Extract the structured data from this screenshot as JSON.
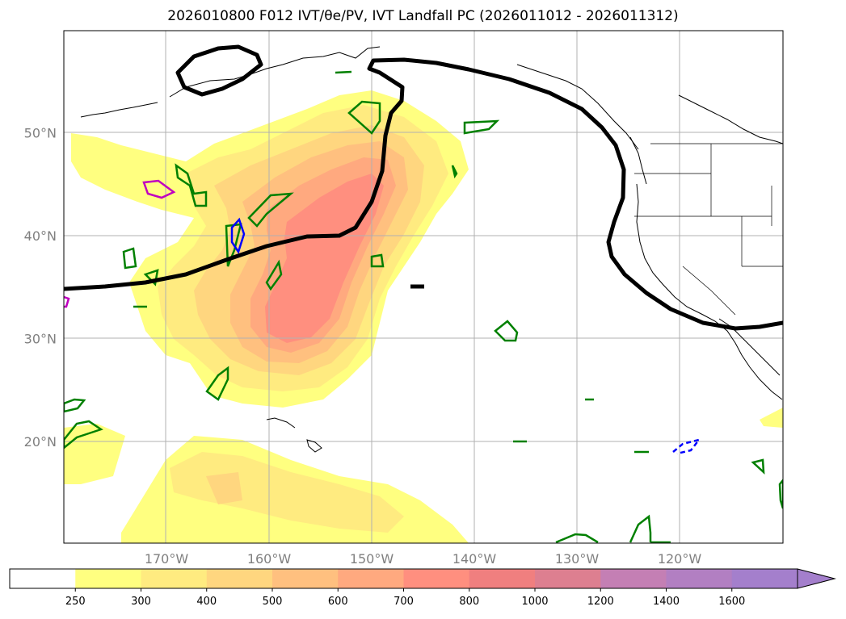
{
  "title": "2026010800 F012 IVT/θe/PV, IVT Landfall PC (2026011012 - 2026011312)",
  "map": {
    "lat_labels": [
      {
        "lat": 50,
        "text": "50°N"
      },
      {
        "lat": 40,
        "text": "40°N"
      },
      {
        "lat": 30,
        "text": "30°N"
      },
      {
        "lat": 20,
        "text": "20°N"
      }
    ],
    "lon_labels": [
      {
        "lon": -170,
        "text": "170°W"
      },
      {
        "lon": -160,
        "text": "160°W"
      },
      {
        "lon": -150,
        "text": "150°W"
      },
      {
        "lon": -140,
        "text": "140°W"
      },
      {
        "lon": -130,
        "text": "130°W"
      },
      {
        "lon": -120,
        "text": "120°W"
      }
    ]
  },
  "colorbar": {
    "levels": [
      "250",
      "300",
      "400",
      "500",
      "600",
      "700",
      "800",
      "1000",
      "1200",
      "1400",
      "1600"
    ],
    "colors": [
      "#ffffff",
      "#ffff80",
      "#ffeb80",
      "#ffd67f",
      "#ffc07f",
      "#ffa97f",
      "#ff8f7f",
      "#f07f7f",
      "#dd7f90",
      "#c47fb4",
      "#b27fc2",
      "#a47fcc"
    ],
    "extend": "max"
  },
  "legend_colors": {
    "ivt_contour": "#000000",
    "theta_e": "#008000",
    "pv_positive": "#c000c0",
    "pv_negative": "#0000ff"
  }
}
